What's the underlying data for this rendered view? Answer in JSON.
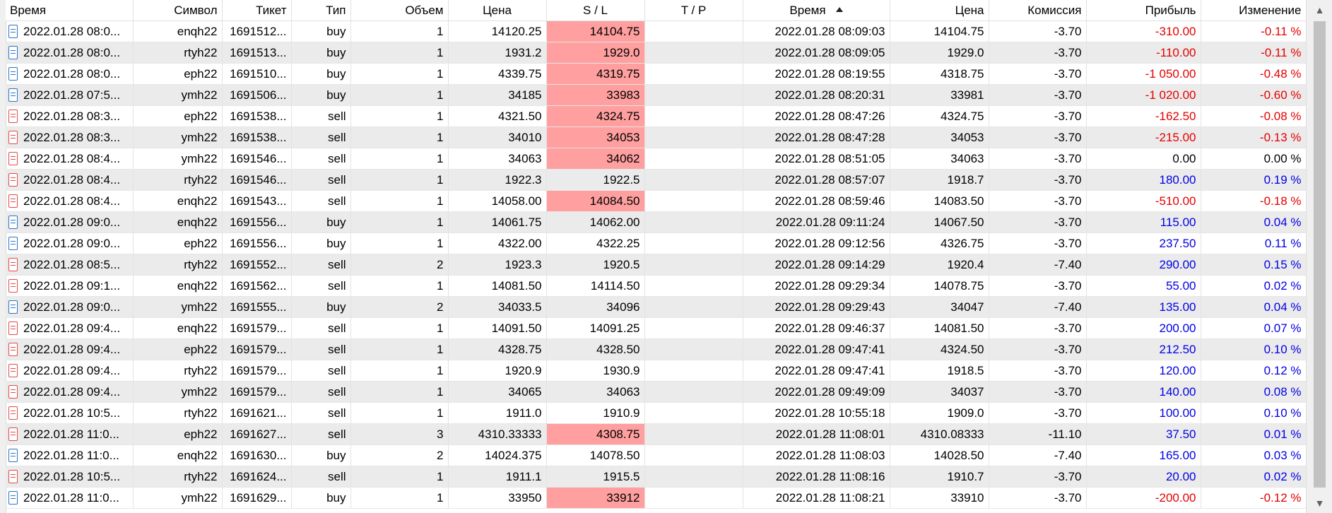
{
  "headers": {
    "time_open": "Время",
    "symbol": "Символ",
    "ticket": "Тикет",
    "type": "Тип",
    "volume": "Объем",
    "price_open": "Цена",
    "sl": "S / L",
    "tp": "T / P",
    "time_close": "Время",
    "price_close": "Цена",
    "commission": "Комиссия",
    "profit": "Прибыль",
    "change": "Изменение"
  },
  "colors": {
    "loss": "#e60000",
    "profit": "#0000e6",
    "sl_hit_bg": "#ff9f9f",
    "buy_icon": "#2c74c7",
    "sell_icon": "#e14b4b"
  },
  "rows": [
    {
      "time_open": "2022.01.28 08:0...",
      "symbol": "enqh22",
      "ticket": "1691512...",
      "type": "buy",
      "volume": "1",
      "price_open": "14120.25",
      "sl": "14104.75",
      "sl_hit": true,
      "tp": "",
      "time_close": "2022.01.28 08:09:03",
      "price_close": "14104.75",
      "commission": "-3.70",
      "profit": "-310.00",
      "change": "-0.11 %",
      "sign": "neg"
    },
    {
      "time_open": "2022.01.28 08:0...",
      "symbol": "rtyh22",
      "ticket": "1691513...",
      "type": "buy",
      "volume": "1",
      "price_open": "1931.2",
      "sl": "1929.0",
      "sl_hit": true,
      "tp": "",
      "time_close": "2022.01.28 08:09:05",
      "price_close": "1929.0",
      "commission": "-3.70",
      "profit": "-110.00",
      "change": "-0.11 %",
      "sign": "neg"
    },
    {
      "time_open": "2022.01.28 08:0...",
      "symbol": "eph22",
      "ticket": "1691510...",
      "type": "buy",
      "volume": "1",
      "price_open": "4339.75",
      "sl": "4319.75",
      "sl_hit": true,
      "tp": "",
      "time_close": "2022.01.28 08:19:55",
      "price_close": "4318.75",
      "commission": "-3.70",
      "profit": "-1 050.00",
      "change": "-0.48 %",
      "sign": "neg"
    },
    {
      "time_open": "2022.01.28 07:5...",
      "symbol": "ymh22",
      "ticket": "1691506...",
      "type": "buy",
      "volume": "1",
      "price_open": "34185",
      "sl": "33983",
      "sl_hit": true,
      "tp": "",
      "time_close": "2022.01.28 08:20:31",
      "price_close": "33981",
      "commission": "-3.70",
      "profit": "-1 020.00",
      "change": "-0.60 %",
      "sign": "neg"
    },
    {
      "time_open": "2022.01.28 08:3...",
      "symbol": "eph22",
      "ticket": "1691538...",
      "type": "sell",
      "volume": "1",
      "price_open": "4321.50",
      "sl": "4324.75",
      "sl_hit": true,
      "tp": "",
      "time_close": "2022.01.28 08:47:26",
      "price_close": "4324.75",
      "commission": "-3.70",
      "profit": "-162.50",
      "change": "-0.08 %",
      "sign": "neg"
    },
    {
      "time_open": "2022.01.28 08:3...",
      "symbol": "ymh22",
      "ticket": "1691538...",
      "type": "sell",
      "volume": "1",
      "price_open": "34010",
      "sl": "34053",
      "sl_hit": true,
      "tp": "",
      "time_close": "2022.01.28 08:47:28",
      "price_close": "34053",
      "commission": "-3.70",
      "profit": "-215.00",
      "change": "-0.13 %",
      "sign": "neg"
    },
    {
      "time_open": "2022.01.28 08:4...",
      "symbol": "ymh22",
      "ticket": "1691546...",
      "type": "sell",
      "volume": "1",
      "price_open": "34063",
      "sl": "34062",
      "sl_hit": true,
      "tp": "",
      "time_close": "2022.01.28 08:51:05",
      "price_close": "34063",
      "commission": "-3.70",
      "profit": "0.00",
      "change": "0.00 %",
      "sign": "zero"
    },
    {
      "time_open": "2022.01.28 08:4...",
      "symbol": "rtyh22",
      "ticket": "1691546...",
      "type": "sell",
      "volume": "1",
      "price_open": "1922.3",
      "sl": "1922.5",
      "sl_hit": false,
      "tp": "",
      "time_close": "2022.01.28 08:57:07",
      "price_close": "1918.7",
      "commission": "-3.70",
      "profit": "180.00",
      "change": "0.19 %",
      "sign": "pos"
    },
    {
      "time_open": "2022.01.28 08:4...",
      "symbol": "enqh22",
      "ticket": "1691543...",
      "type": "sell",
      "volume": "1",
      "price_open": "14058.00",
      "sl": "14084.50",
      "sl_hit": true,
      "tp": "",
      "time_close": "2022.01.28 08:59:46",
      "price_close": "14083.50",
      "commission": "-3.70",
      "profit": "-510.00",
      "change": "-0.18 %",
      "sign": "neg"
    },
    {
      "time_open": "2022.01.28 09:0...",
      "symbol": "enqh22",
      "ticket": "1691556...",
      "type": "buy",
      "volume": "1",
      "price_open": "14061.75",
      "sl": "14062.00",
      "sl_hit": false,
      "tp": "",
      "time_close": "2022.01.28 09:11:24",
      "price_close": "14067.50",
      "commission": "-3.70",
      "profit": "115.00",
      "change": "0.04 %",
      "sign": "pos"
    },
    {
      "time_open": "2022.01.28 09:0...",
      "symbol": "eph22",
      "ticket": "1691556...",
      "type": "buy",
      "volume": "1",
      "price_open": "4322.00",
      "sl": "4322.25",
      "sl_hit": false,
      "tp": "",
      "time_close": "2022.01.28 09:12:56",
      "price_close": "4326.75",
      "commission": "-3.70",
      "profit": "237.50",
      "change": "0.11 %",
      "sign": "pos"
    },
    {
      "time_open": "2022.01.28 08:5...",
      "symbol": "rtyh22",
      "ticket": "1691552...",
      "type": "sell",
      "volume": "2",
      "price_open": "1923.3",
      "sl": "1920.5",
      "sl_hit": false,
      "tp": "",
      "time_close": "2022.01.28 09:14:29",
      "price_close": "1920.4",
      "commission": "-7.40",
      "profit": "290.00",
      "change": "0.15 %",
      "sign": "pos"
    },
    {
      "time_open": "2022.01.28 09:1...",
      "symbol": "enqh22",
      "ticket": "1691562...",
      "type": "sell",
      "volume": "1",
      "price_open": "14081.50",
      "sl": "14114.50",
      "sl_hit": false,
      "tp": "",
      "time_close": "2022.01.28 09:29:34",
      "price_close": "14078.75",
      "commission": "-3.70",
      "profit": "55.00",
      "change": "0.02 %",
      "sign": "pos"
    },
    {
      "time_open": "2022.01.28 09:0...",
      "symbol": "ymh22",
      "ticket": "1691555...",
      "type": "buy",
      "volume": "2",
      "price_open": "34033.5",
      "sl": "34096",
      "sl_hit": false,
      "tp": "",
      "time_close": "2022.01.28 09:29:43",
      "price_close": "34047",
      "commission": "-7.40",
      "profit": "135.00",
      "change": "0.04 %",
      "sign": "pos"
    },
    {
      "time_open": "2022.01.28 09:4...",
      "symbol": "enqh22",
      "ticket": "1691579...",
      "type": "sell",
      "volume": "1",
      "price_open": "14091.50",
      "sl": "14091.25",
      "sl_hit": false,
      "tp": "",
      "time_close": "2022.01.28 09:46:37",
      "price_close": "14081.50",
      "commission": "-3.70",
      "profit": "200.00",
      "change": "0.07 %",
      "sign": "pos"
    },
    {
      "time_open": "2022.01.28 09:4...",
      "symbol": "eph22",
      "ticket": "1691579...",
      "type": "sell",
      "volume": "1",
      "price_open": "4328.75",
      "sl": "4328.50",
      "sl_hit": false,
      "tp": "",
      "time_close": "2022.01.28 09:47:41",
      "price_close": "4324.50",
      "commission": "-3.70",
      "profit": "212.50",
      "change": "0.10 %",
      "sign": "pos"
    },
    {
      "time_open": "2022.01.28 09:4...",
      "symbol": "rtyh22",
      "ticket": "1691579...",
      "type": "sell",
      "volume": "1",
      "price_open": "1920.9",
      "sl": "1930.9",
      "sl_hit": false,
      "tp": "",
      "time_close": "2022.01.28 09:47:41",
      "price_close": "1918.5",
      "commission": "-3.70",
      "profit": "120.00",
      "change": "0.12 %",
      "sign": "pos"
    },
    {
      "time_open": "2022.01.28 09:4...",
      "symbol": "ymh22",
      "ticket": "1691579...",
      "type": "sell",
      "volume": "1",
      "price_open": "34065",
      "sl": "34063",
      "sl_hit": false,
      "tp": "",
      "time_close": "2022.01.28 09:49:09",
      "price_close": "34037",
      "commission": "-3.70",
      "profit": "140.00",
      "change": "0.08 %",
      "sign": "pos"
    },
    {
      "time_open": "2022.01.28 10:5...",
      "symbol": "rtyh22",
      "ticket": "1691621...",
      "type": "sell",
      "volume": "1",
      "price_open": "1911.0",
      "sl": "1910.9",
      "sl_hit": false,
      "tp": "",
      "time_close": "2022.01.28 10:55:18",
      "price_close": "1909.0",
      "commission": "-3.70",
      "profit": "100.00",
      "change": "0.10 %",
      "sign": "pos"
    },
    {
      "time_open": "2022.01.28 11:0...",
      "symbol": "eph22",
      "ticket": "1691627...",
      "type": "sell",
      "volume": "3",
      "price_open": "4310.33333",
      "sl": "4308.75",
      "sl_hit": true,
      "tp": "",
      "time_close": "2022.01.28 11:08:01",
      "price_close": "4310.08333",
      "commission": "-11.10",
      "profit": "37.50",
      "change": "0.01 %",
      "sign": "pos"
    },
    {
      "time_open": "2022.01.28 11:0...",
      "symbol": "enqh22",
      "ticket": "1691630...",
      "type": "buy",
      "volume": "2",
      "price_open": "14024.375",
      "sl": "14078.50",
      "sl_hit": false,
      "tp": "",
      "time_close": "2022.01.28 11:08:03",
      "price_close": "14028.50",
      "commission": "-7.40",
      "profit": "165.00",
      "change": "0.03 %",
      "sign": "pos"
    },
    {
      "time_open": "2022.01.28 10:5...",
      "symbol": "rtyh22",
      "ticket": "1691624...",
      "type": "sell",
      "volume": "1",
      "price_open": "1911.1",
      "sl": "1915.5",
      "sl_hit": false,
      "tp": "",
      "time_close": "2022.01.28 11:08:16",
      "price_close": "1910.7",
      "commission": "-3.70",
      "profit": "20.00",
      "change": "0.02 %",
      "sign": "pos"
    },
    {
      "time_open": "2022.01.28 11:0...",
      "symbol": "ymh22",
      "ticket": "1691629...",
      "type": "buy",
      "volume": "1",
      "price_open": "33950",
      "sl": "33912",
      "sl_hit": true,
      "tp": "",
      "time_close": "2022.01.28 11:08:21",
      "price_close": "33910",
      "commission": "-3.70",
      "profit": "-200.00",
      "change": "-0.12 %",
      "sign": "neg"
    }
  ]
}
